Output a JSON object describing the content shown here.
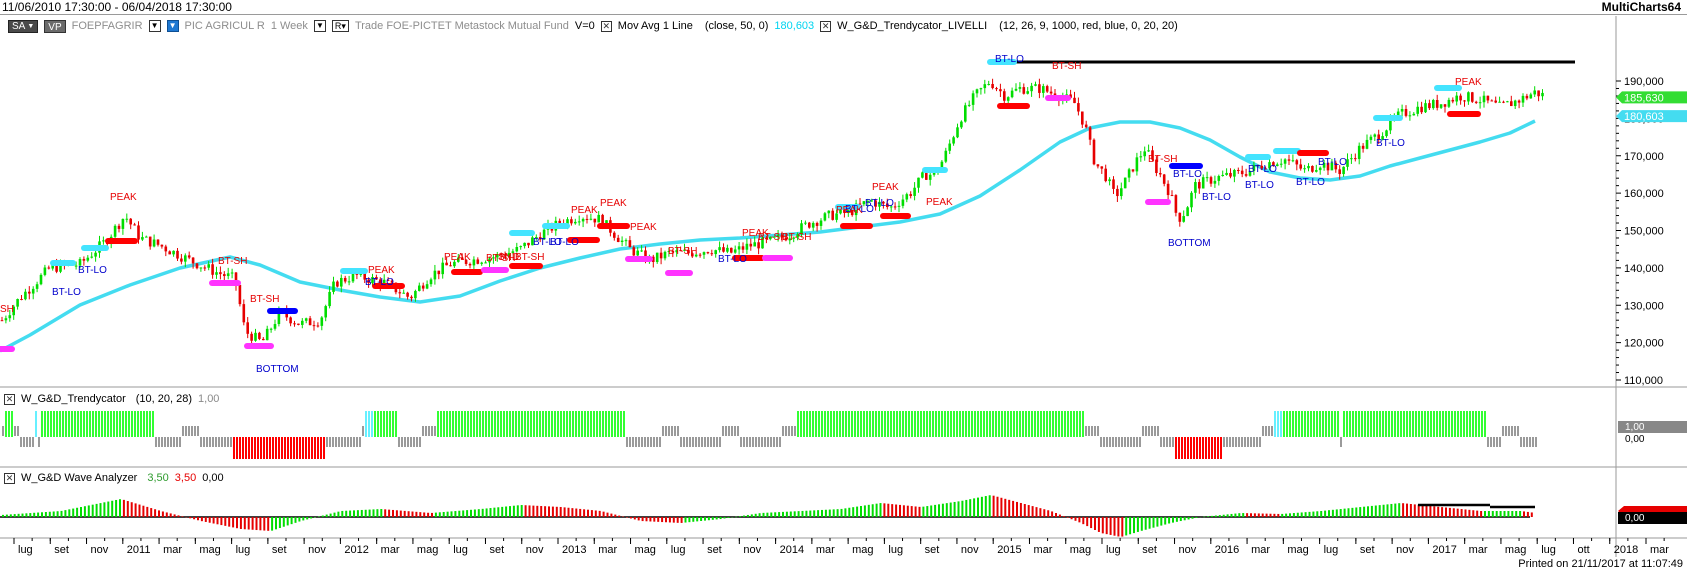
{
  "window": {
    "date_range": "11/06/2010 17:30:00 - 06/04/2018 17:30:00",
    "app_name": "MultiCharts64"
  },
  "toolbar": {
    "sa_label": "SA",
    "vp_label": "VP",
    "symbol": "FOEPFAGRIR",
    "description": "PIC AGRICUL R",
    "resolution": "1 Week",
    "r_label": "R",
    "source": "Trade FOE-PICTET Metastock Mutual Fund",
    "volume": "V=0"
  },
  "indicators_main": [
    {
      "name": "Mov Avg 1 Line",
      "params": "(close, 50, 0)",
      "value": "180,603"
    },
    {
      "name": "W_G&D_Trendycator_LIVELLI",
      "params": "(12, 26, 9, 1000, red, blue, 0, 20, 20)"
    }
  ],
  "panel2": {
    "name": "W_G&D_Trendycator",
    "params": "(10, 20, 28)",
    "value": "1,00"
  },
  "panel3": {
    "name": "W_G&D Wave Analyzer",
    "val1": "3,50",
    "val2": "3,50",
    "val3": "0,00"
  },
  "price_axis": {
    "labels": [
      "190,000",
      "180,000",
      "170,000",
      "160,000",
      "150,000",
      "140,000",
      "130,000",
      "120,000",
      "110,000"
    ],
    "last_price": "185,630",
    "ma_price": "180,603"
  },
  "panel2_axis": {
    "upper": "1,00",
    "lower": "0,00"
  },
  "panel3_axis": {
    "value": "0,00"
  },
  "time_axis": {
    "labels": [
      "lug",
      "set",
      "nov",
      "2011",
      "mar",
      "mag",
      "lug",
      "set",
      "nov",
      "2012",
      "mar",
      "mag",
      "lug",
      "set",
      "nov",
      "2013",
      "mar",
      "mag",
      "lug",
      "set",
      "nov",
      "2014",
      "mar",
      "mag",
      "lug",
      "set",
      "nov",
      "2015",
      "mar",
      "mag",
      "lug",
      "set",
      "nov",
      "2016",
      "mar",
      "mag",
      "lug",
      "set",
      "nov",
      "2017",
      "mar",
      "mag",
      "lug",
      "ott",
      "2018",
      "mar"
    ]
  },
  "annotations": [
    {
      "text": "SH",
      "color": "#e60000"
    },
    {
      "text": "PEAK",
      "color": "#e60000"
    },
    {
      "text": "BT-LO",
      "color": "#0000cc"
    },
    {
      "text": "BT-LO",
      "color": "#0000cc"
    },
    {
      "text": "BT-SH",
      "color": "#e60000"
    },
    {
      "text": "BT-SH",
      "color": "#e60000"
    },
    {
      "text": "BOTTOM",
      "color": "#0000cc"
    },
    {
      "text": "PEAK",
      "color": "#e60000"
    },
    {
      "text": "BT-LO",
      "color": "#0000cc"
    },
    {
      "text": "PEAK",
      "color": "#e60000"
    },
    {
      "text": "BT-SH",
      "color": "#e60000"
    },
    {
      "text": "SND",
      "color": "#e60000"
    },
    {
      "text": "BT-SH",
      "color": "#e60000"
    },
    {
      "text": "PEAK",
      "color": "#e60000"
    },
    {
      "text": "BT-LO",
      "color": "#0000cc"
    },
    {
      "text": "BT-LO",
      "color": "#0000cc"
    },
    {
      "text": "PEAK",
      "color": "#e60000"
    },
    {
      "text": "PEAK",
      "color": "#e60000"
    },
    {
      "text": "BT-SH",
      "color": "#e60000"
    },
    {
      "text": "BT-SH",
      "color": "#e60000"
    },
    {
      "text": "BT-LO",
      "color": "#0000cc"
    },
    {
      "text": "PEAK",
      "color": "#e60000"
    },
    {
      "text": "BT-SH",
      "color": "#e60000"
    },
    {
      "text": "PEAK",
      "color": "#e60000"
    },
    {
      "text": "BT-LO",
      "color": "#0000cc"
    },
    {
      "text": "PEAK",
      "color": "#e60000"
    },
    {
      "text": "BT-LO",
      "color": "#0000cc"
    },
    {
      "text": "PEAK",
      "color": "#e60000"
    },
    {
      "text": "BT-LO",
      "color": "#0000cc"
    },
    {
      "text": "BT-SH",
      "color": "#e60000"
    },
    {
      "text": "BT-SH",
      "color": "#e60000"
    },
    {
      "text": "BT-LO",
      "color": "#0000cc"
    },
    {
      "text": "BOTTOM",
      "color": "#0000cc"
    },
    {
      "text": "BT-LO",
      "color": "#0000cc"
    },
    {
      "text": "BT-LO",
      "color": "#0000cc"
    },
    {
      "text": "BT-LO",
      "color": "#0000cc"
    },
    {
      "text": "BT-LO",
      "color": "#0000cc"
    },
    {
      "text": "BT-LO",
      "color": "#0000cc"
    },
    {
      "text": "PEAK",
      "color": "#e60000"
    },
    {
      "text": "BT-LO",
      "color": "#0000cc"
    }
  ],
  "footer": {
    "printed": "Printed on 21/11/2017 at 11:07:49"
  },
  "colors": {
    "up_bar": "#00dd00",
    "down_bar": "#e60000",
    "ma_line": "#44dcf0",
    "trend_green": "#33ff33",
    "trend_red": "#ff0000",
    "trend_gray": "#9a9a9a",
    "trend_cyan": "#66f0ff",
    "marker_red": "#ff0000",
    "marker_blue": "#0000ff",
    "marker_cyan": "#44e4ff",
    "marker_magenta": "#ff33ff"
  }
}
